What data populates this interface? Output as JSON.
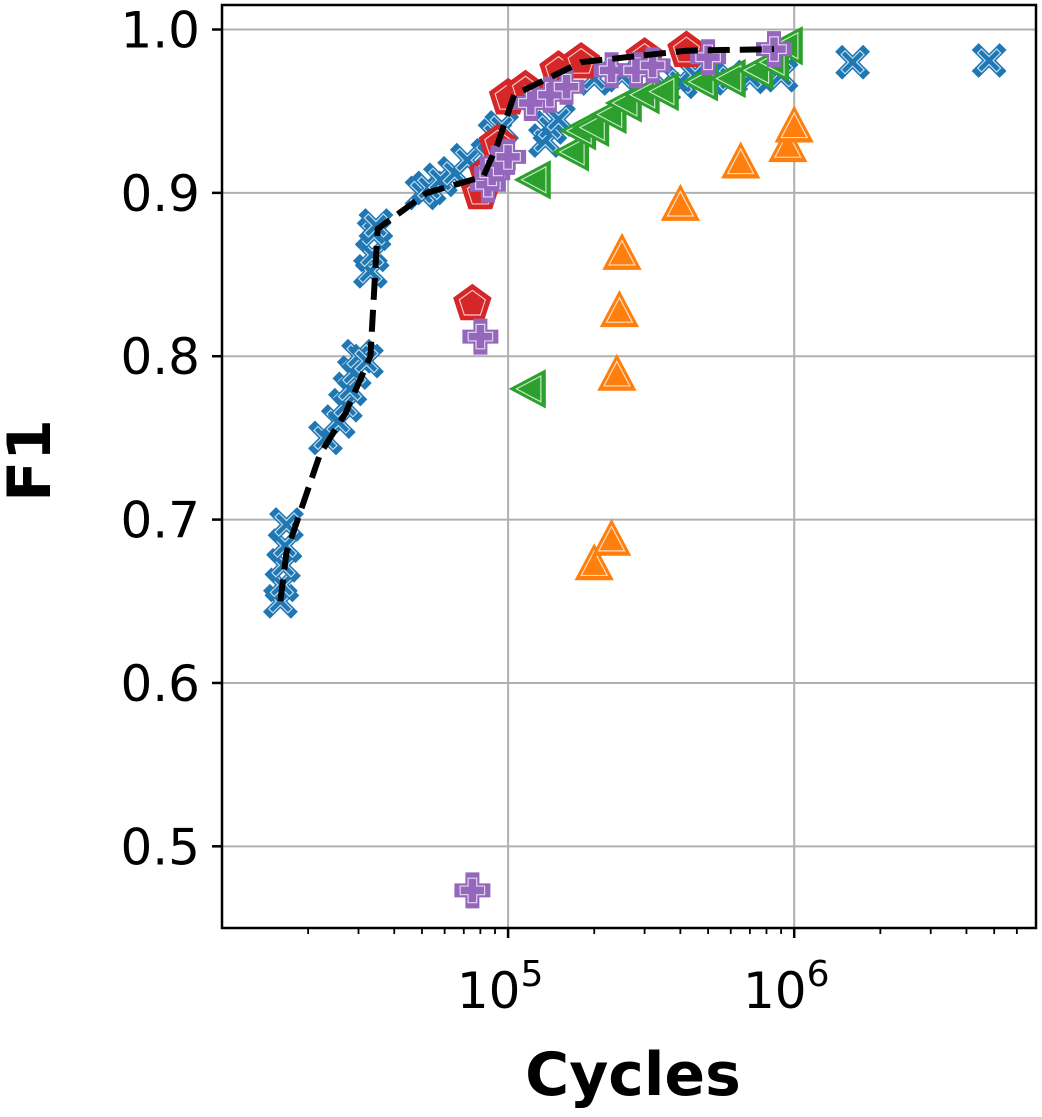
{
  "chart_data": {
    "type": "scatter",
    "title": "",
    "xlabel": "Cycles",
    "ylabel": "F1",
    "xscale": "log",
    "xlim": [
      10000,
      7000000
    ],
    "ylim": [
      0.45,
      1.015
    ],
    "grid": true,
    "x_ticks": [
      {
        "value": 100000,
        "base": "10",
        "exp": "5"
      },
      {
        "value": 1000000,
        "base": "10",
        "exp": "6"
      }
    ],
    "y_ticks": [
      {
        "value": 0.5,
        "label": "0.5"
      },
      {
        "value": 0.6,
        "label": "0.6"
      },
      {
        "value": 0.7,
        "label": "0.7"
      },
      {
        "value": 0.8,
        "label": "0.8"
      },
      {
        "value": 0.9,
        "label": "0.9"
      },
      {
        "value": 1.0,
        "label": "1.0"
      }
    ],
    "series": [
      {
        "marker": "x",
        "color": "#1f77b4",
        "points": [
          [
            16000,
            0.65
          ],
          [
            16200,
            0.66
          ],
          [
            16400,
            0.672
          ],
          [
            16600,
            0.684
          ],
          [
            16800,
            0.697
          ],
          [
            23000,
            0.75
          ],
          [
            25500,
            0.76
          ],
          [
            27000,
            0.77
          ],
          [
            28000,
            0.78
          ],
          [
            29000,
            0.79
          ],
          [
            30000,
            0.8
          ],
          [
            32000,
            0.797
          ],
          [
            33000,
            0.852
          ],
          [
            33500,
            0.862
          ],
          [
            34000,
            0.875
          ],
          [
            34500,
            0.88
          ],
          [
            50000,
            0.9
          ],
          [
            53000,
            0.903
          ],
          [
            58000,
            0.908
          ],
          [
            65000,
            0.912
          ],
          [
            72000,
            0.92
          ],
          [
            85000,
            0.923
          ],
          [
            90000,
            0.935
          ],
          [
            95000,
            0.94
          ],
          [
            110000,
            0.958
          ],
          [
            125000,
            0.96
          ],
          [
            135000,
            0.932
          ],
          [
            140000,
            0.94
          ],
          [
            150000,
            0.945
          ],
          [
            200000,
            0.97
          ],
          [
            250000,
            0.972
          ],
          [
            350000,
            0.965
          ],
          [
            400000,
            0.968
          ],
          [
            450000,
            0.972
          ],
          [
            600000,
            0.97
          ],
          [
            700000,
            0.971
          ],
          [
            900000,
            0.972
          ],
          [
            1600000,
            0.98
          ],
          [
            4800000,
            0.981
          ]
        ]
      },
      {
        "marker": "triangle-up",
        "color": "#ff7f0e",
        "points": [
          [
            200000,
            0.672
          ],
          [
            230000,
            0.687
          ],
          [
            240000,
            0.788
          ],
          [
            245000,
            0.827
          ],
          [
            250000,
            0.862
          ],
          [
            400000,
            0.892
          ],
          [
            650000,
            0.918
          ],
          [
            950000,
            0.928
          ],
          [
            1000000,
            0.94
          ]
        ]
      },
      {
        "marker": "triangle-left",
        "color": "#2ca02c",
        "points": [
          [
            120000,
            0.78
          ],
          [
            125000,
            0.908
          ],
          [
            170000,
            0.925
          ],
          [
            180000,
            0.938
          ],
          [
            200000,
            0.94
          ],
          [
            230000,
            0.948
          ],
          [
            260000,
            0.955
          ],
          [
            300000,
            0.96
          ],
          [
            350000,
            0.962
          ],
          [
            480000,
            0.968
          ],
          [
            600000,
            0.97
          ],
          [
            750000,
            0.975
          ],
          [
            850000,
            0.98
          ],
          [
            950000,
            0.99
          ]
        ]
      },
      {
        "marker": "pentagon",
        "color": "#d62728",
        "points": [
          [
            75000,
            0.832
          ],
          [
            80000,
            0.9
          ],
          [
            85000,
            0.912
          ],
          [
            92000,
            0.93
          ],
          [
            100000,
            0.958
          ],
          [
            115000,
            0.963
          ],
          [
            150000,
            0.975
          ],
          [
            180000,
            0.98
          ],
          [
            300000,
            0.983
          ],
          [
            420000,
            0.987
          ]
        ]
      },
      {
        "marker": "plus",
        "color": "#9467bd",
        "points": [
          [
            75000,
            0.473
          ],
          [
            80000,
            0.812
          ],
          [
            85000,
            0.905
          ],
          [
            88000,
            0.912
          ],
          [
            92000,
            0.918
          ],
          [
            100000,
            0.922
          ],
          [
            120000,
            0.955
          ],
          [
            140000,
            0.96
          ],
          [
            160000,
            0.965
          ],
          [
            230000,
            0.975
          ],
          [
            280000,
            0.975
          ],
          [
            320000,
            0.978
          ],
          [
            500000,
            0.983
          ],
          [
            850000,
            0.988
          ]
        ]
      }
    ],
    "frontier": {
      "color": "#000000",
      "style": "dashed",
      "points": [
        [
          16000,
          0.65
        ],
        [
          16800,
          0.68
        ],
        [
          22000,
          0.74
        ],
        [
          27000,
          0.765
        ],
        [
          33000,
          0.8
        ],
        [
          35000,
          0.878
        ],
        [
          52000,
          0.9
        ],
        [
          82000,
          0.91
        ],
        [
          92000,
          0.93
        ],
        [
          105000,
          0.96
        ],
        [
          180000,
          0.98
        ],
        [
          420000,
          0.987
        ],
        [
          850000,
          0.988
        ]
      ]
    }
  }
}
